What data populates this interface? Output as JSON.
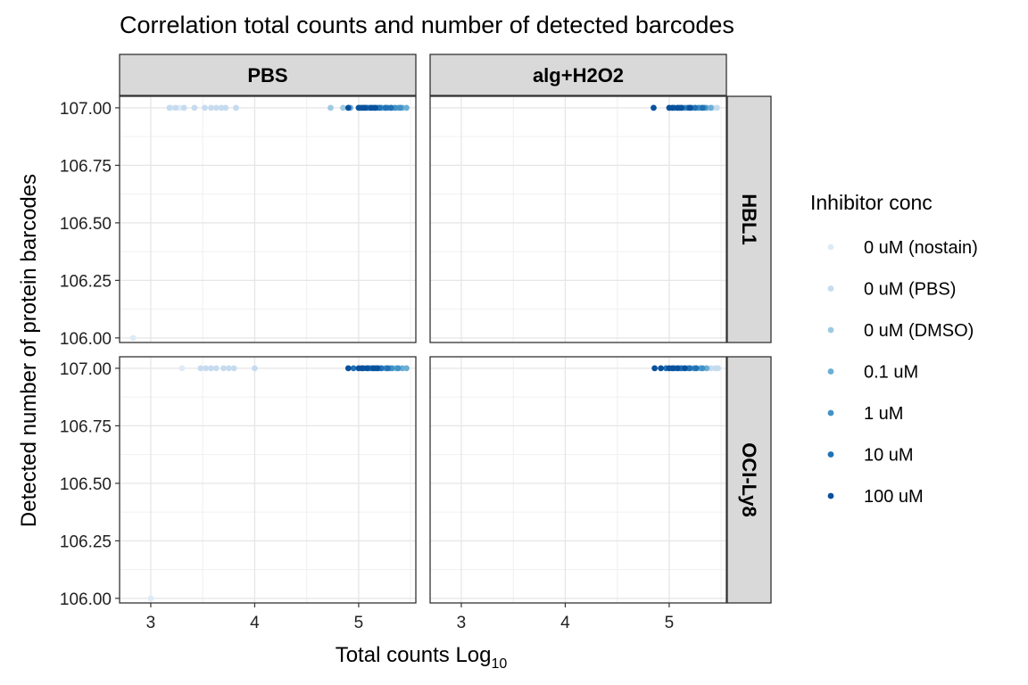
{
  "chart_data": {
    "type": "scatter",
    "title": "Correlation total counts and number of detected barcodes",
    "xlabel": "Total counts Log",
    "xlabel_sub": "10",
    "ylabel": "Detected number of protein barcodes",
    "xlim": [
      2.7,
      5.55
    ],
    "ylim": [
      105.98,
      107.05
    ],
    "x_ticks": [
      3,
      4,
      5
    ],
    "y_ticks": [
      106.0,
      106.25,
      106.5,
      106.75,
      107.0
    ],
    "y_tick_labels": [
      "106.00",
      "106.25",
      "106.50",
      "106.75",
      "107.00"
    ],
    "grid": true,
    "facet_cols": [
      "PBS",
      "alg+H2O2"
    ],
    "facet_rows": [
      "HBL1",
      "OCI-Ly8"
    ],
    "legend": {
      "title": "Inhibitor conc",
      "position": "right",
      "entries": [
        {
          "label": "0 uM (nostain)",
          "color": "#deebf7"
        },
        {
          "label": "0 uM (PBS)",
          "color": "#c6dbef"
        },
        {
          "label": "0 uM (DMSO)",
          "color": "#9ecae1"
        },
        {
          "label": "0.1 uM",
          "color": "#6baed6"
        },
        {
          "label": "1 uM",
          "color": "#4292c6"
        },
        {
          "label": "10 uM",
          "color": "#2171b5"
        },
        {
          "label": "100 uM",
          "color": "#08519c"
        }
      ]
    },
    "panels": [
      {
        "col": "PBS",
        "row": "HBL1",
        "series": [
          {
            "name": "0 uM (nostain)",
            "points": [
              [
                2.83,
                106.0
              ],
              [
                3.2,
                107.0
              ],
              [
                3.28,
                107.0
              ]
            ]
          },
          {
            "name": "0 uM (PBS)",
            "points": [
              [
                3.18,
                107.0
              ],
              [
                3.24,
                107.0
              ],
              [
                3.32,
                107.0
              ],
              [
                3.42,
                107.0
              ],
              [
                3.52,
                107.0
              ],
              [
                3.58,
                107.0
              ],
              [
                3.63,
                107.0
              ],
              [
                3.68,
                107.0
              ],
              [
                3.72,
                107.0
              ],
              [
                3.82,
                107.0
              ]
            ]
          },
          {
            "name": "0 uM (DMSO)",
            "points": [
              [
                4.73,
                107.0
              ],
              [
                4.85,
                107.0
              ]
            ]
          },
          {
            "name": "0.1 uM",
            "points": [
              [
                4.92,
                107.0
              ],
              [
                5.25,
                107.0
              ],
              [
                5.32,
                107.0
              ],
              [
                5.38,
                107.0
              ],
              [
                5.42,
                107.0
              ],
              [
                5.46,
                107.0
              ]
            ]
          },
          {
            "name": "1 uM",
            "points": [
              [
                5.1,
                107.0
              ],
              [
                5.18,
                107.0
              ],
              [
                5.22,
                107.0
              ],
              [
                5.28,
                107.0
              ],
              [
                5.35,
                107.0
              ],
              [
                5.4,
                107.0
              ]
            ]
          },
          {
            "name": "10 uM",
            "points": [
              [
                5.02,
                107.0
              ],
              [
                5.08,
                107.0
              ],
              [
                5.14,
                107.0
              ],
              [
                5.2,
                107.0
              ],
              [
                5.26,
                107.0
              ],
              [
                5.31,
                107.0
              ]
            ]
          },
          {
            "name": "100 uM",
            "points": [
              [
                4.9,
                107.0
              ],
              [
                5.0,
                107.0
              ],
              [
                5.04,
                107.0
              ],
              [
                5.06,
                107.0
              ],
              [
                5.12,
                107.0
              ],
              [
                5.16,
                107.0
              ]
            ]
          }
        ]
      },
      {
        "col": "alg+H2O2",
        "row": "HBL1",
        "series": [
          {
            "name": "0 uM (PBS)",
            "points": [
              [
                5.42,
                107.0
              ],
              [
                5.46,
                107.0
              ]
            ]
          },
          {
            "name": "0.1 uM",
            "points": [
              [
                5.3,
                107.0
              ],
              [
                5.36,
                107.0
              ],
              [
                5.4,
                107.0
              ]
            ]
          },
          {
            "name": "1 uM",
            "points": [
              [
                5.15,
                107.0
              ],
              [
                5.22,
                107.0
              ],
              [
                5.28,
                107.0
              ],
              [
                5.34,
                107.0
              ]
            ]
          },
          {
            "name": "10 uM",
            "points": [
              [
                5.05,
                107.0
              ],
              [
                5.1,
                107.0
              ],
              [
                5.18,
                107.0
              ],
              [
                5.25,
                107.0
              ],
              [
                5.32,
                107.0
              ]
            ]
          },
          {
            "name": "100 uM",
            "points": [
              [
                4.85,
                107.0
              ],
              [
                5.0,
                107.0
              ],
              [
                5.03,
                107.0
              ],
              [
                5.08,
                107.0
              ],
              [
                5.12,
                107.0
              ],
              [
                5.2,
                107.0
              ]
            ]
          }
        ]
      },
      {
        "col": "PBS",
        "row": "OCI-Ly8",
        "series": [
          {
            "name": "0 uM (nostain)",
            "points": [
              [
                3.0,
                106.0
              ],
              [
                3.3,
                107.0
              ]
            ]
          },
          {
            "name": "0 uM (PBS)",
            "points": [
              [
                3.48,
                107.0
              ],
              [
                3.53,
                107.0
              ],
              [
                3.58,
                107.0
              ],
              [
                3.63,
                107.0
              ],
              [
                3.7,
                107.0
              ],
              [
                3.75,
                107.0
              ],
              [
                3.8,
                107.0
              ],
              [
                4.0,
                107.0
              ]
            ]
          },
          {
            "name": "0.1 uM",
            "points": [
              [
                5.3,
                107.0
              ],
              [
                5.36,
                107.0
              ],
              [
                5.42,
                107.0
              ],
              [
                5.46,
                107.0
              ]
            ]
          },
          {
            "name": "1 uM",
            "points": [
              [
                5.12,
                107.0
              ],
              [
                5.2,
                107.0
              ],
              [
                5.26,
                107.0
              ],
              [
                5.32,
                107.0
              ],
              [
                5.38,
                107.0
              ]
            ]
          },
          {
            "name": "10 uM",
            "points": [
              [
                4.95,
                107.0
              ],
              [
                5.05,
                107.0
              ],
              [
                5.1,
                107.0
              ],
              [
                5.16,
                107.0
              ],
              [
                5.22,
                107.0
              ],
              [
                5.28,
                107.0
              ]
            ]
          },
          {
            "name": "100 uM",
            "points": [
              [
                4.9,
                107.0
              ],
              [
                5.0,
                107.0
              ],
              [
                5.03,
                107.0
              ],
              [
                5.08,
                107.0
              ],
              [
                5.14,
                107.0
              ],
              [
                5.18,
                107.0
              ]
            ]
          }
        ]
      },
      {
        "col": "alg+H2O2",
        "row": "OCI-Ly8",
        "series": [
          {
            "name": "0 uM (PBS)",
            "points": [
              [
                5.4,
                107.0
              ],
              [
                5.44,
                107.0
              ],
              [
                5.47,
                107.0
              ]
            ]
          },
          {
            "name": "0.1 uM",
            "points": [
              [
                5.3,
                107.0
              ],
              [
                5.36,
                107.0
              ]
            ]
          },
          {
            "name": "1 uM",
            "points": [
              [
                5.1,
                107.0
              ],
              [
                5.18,
                107.0
              ],
              [
                5.24,
                107.0
              ],
              [
                5.32,
                107.0
              ]
            ]
          },
          {
            "name": "10 uM",
            "points": [
              [
                4.97,
                107.0
              ],
              [
                5.05,
                107.0
              ],
              [
                5.12,
                107.0
              ],
              [
                5.2,
                107.0
              ],
              [
                5.26,
                107.0
              ]
            ]
          },
          {
            "name": "100 uM",
            "points": [
              [
                4.86,
                107.0
              ],
              [
                4.92,
                107.0
              ],
              [
                5.0,
                107.0
              ],
              [
                5.03,
                107.0
              ],
              [
                5.08,
                107.0
              ],
              [
                5.15,
                107.0
              ]
            ]
          }
        ]
      }
    ]
  }
}
